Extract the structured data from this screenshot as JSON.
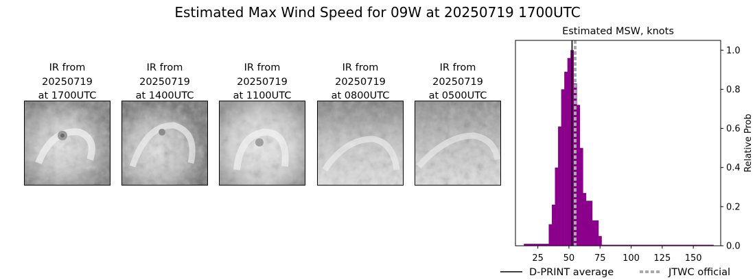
{
  "figure": {
    "title": "Estimated Max Wind Speed for 09W at 20250719 1700UTC"
  },
  "ir_panels": [
    {
      "line1": "IR from",
      "line2": "20250719",
      "line3": "at 1700UTC"
    },
    {
      "line1": "IR from",
      "line2": "20250719",
      "line3": "at 1400UTC"
    },
    {
      "line1": "IR from",
      "line2": "20250719",
      "line3": "at 1100UTC"
    },
    {
      "line1": "IR from",
      "line2": "20250719",
      "line3": "at 0800UTC"
    },
    {
      "line1": "IR from",
      "line2": "20250719",
      "line3": "at 0500UTC"
    }
  ],
  "chart_data": {
    "type": "bar",
    "title": "Estimated MSW, knots",
    "xlabel": "",
    "ylabel": "Relative Prob",
    "xlim": [
      7,
      172
    ],
    "ylim": [
      0,
      1.05
    ],
    "xticks": [
      25,
      50,
      75,
      100,
      125,
      150
    ],
    "yticks": [
      0.0,
      0.2,
      0.4,
      0.6,
      0.8,
      1.0
    ],
    "y_axis_side": "right",
    "grid": false,
    "bar_color": "#8b008b",
    "bin_width": 2.5,
    "bins": [
      {
        "x": 15,
        "y": 0.01
      },
      {
        "x": 17.5,
        "y": 0.01
      },
      {
        "x": 20,
        "y": 0.01
      },
      {
        "x": 22.5,
        "y": 0.01
      },
      {
        "x": 25,
        "y": 0.01
      },
      {
        "x": 27.5,
        "y": 0.01
      },
      {
        "x": 30,
        "y": 0.01
      },
      {
        "x": 32.5,
        "y": 0.01
      },
      {
        "x": 35,
        "y": 0.11
      },
      {
        "x": 37.5,
        "y": 0.21
      },
      {
        "x": 40,
        "y": 0.4
      },
      {
        "x": 42.5,
        "y": 0.61
      },
      {
        "x": 45,
        "y": 0.8
      },
      {
        "x": 47.5,
        "y": 0.89
      },
      {
        "x": 50,
        "y": 0.96
      },
      {
        "x": 52.5,
        "y": 1.0
      },
      {
        "x": 55,
        "y": 0.83
      },
      {
        "x": 57.5,
        "y": 0.72
      },
      {
        "x": 60,
        "y": 0.5
      },
      {
        "x": 62.5,
        "y": 0.27
      },
      {
        "x": 65,
        "y": 0.23
      },
      {
        "x": 67.5,
        "y": 0.23
      },
      {
        "x": 70,
        "y": 0.13
      },
      {
        "x": 72.5,
        "y": 0.13
      },
      {
        "x": 75,
        "y": 0.05
      },
      {
        "x": 77.5,
        "y": 0.005
      },
      {
        "x": 80,
        "y": 0.005
      },
      {
        "x": 82.5,
        "y": 0.005
      },
      {
        "x": 85,
        "y": 0.005
      },
      {
        "x": 87.5,
        "y": 0.005
      },
      {
        "x": 90,
        "y": 0.005
      },
      {
        "x": 92.5,
        "y": 0.005
      },
      {
        "x": 95,
        "y": 0.005
      },
      {
        "x": 97.5,
        "y": 0.005
      },
      {
        "x": 100,
        "y": 0.005
      },
      {
        "x": 102.5,
        "y": 0.005
      },
      {
        "x": 105,
        "y": 0.005
      },
      {
        "x": 107.5,
        "y": 0.005
      },
      {
        "x": 110,
        "y": 0.005
      },
      {
        "x": 112.5,
        "y": 0.005
      },
      {
        "x": 115,
        "y": 0.005
      },
      {
        "x": 117.5,
        "y": 0.005
      },
      {
        "x": 120,
        "y": 0.005
      },
      {
        "x": 122.5,
        "y": 0.005
      },
      {
        "x": 125,
        "y": 0.005
      },
      {
        "x": 127.5,
        "y": 0.005
      },
      {
        "x": 130,
        "y": 0.005
      },
      {
        "x": 132.5,
        "y": 0.005
      },
      {
        "x": 135,
        "y": 0.005
      },
      {
        "x": 137.5,
        "y": 0.005
      },
      {
        "x": 140,
        "y": 0.005
      },
      {
        "x": 142.5,
        "y": 0.005
      },
      {
        "x": 145,
        "y": 0.005
      },
      {
        "x": 147.5,
        "y": 0.005
      },
      {
        "x": 150,
        "y": 0.005
      },
      {
        "x": 152.5,
        "y": 0.005
      },
      {
        "x": 155,
        "y": 0.005
      },
      {
        "x": 157.5,
        "y": 0.005
      },
      {
        "x": 160,
        "y": 0.005
      },
      {
        "x": 162.5,
        "y": 0.005
      },
      {
        "x": 165,
        "y": 0.005
      }
    ],
    "reference_lines": [
      {
        "name": "D-PRINT average",
        "x": 52.5,
        "color": "#000000",
        "style": "solid"
      },
      {
        "name": "JTWC official",
        "x": 55,
        "color": "#aaaaaa",
        "style": "dotted"
      }
    ],
    "legend": {
      "placement": "bottom",
      "entries": [
        "D-PRINT average",
        "JTWC official"
      ]
    }
  }
}
